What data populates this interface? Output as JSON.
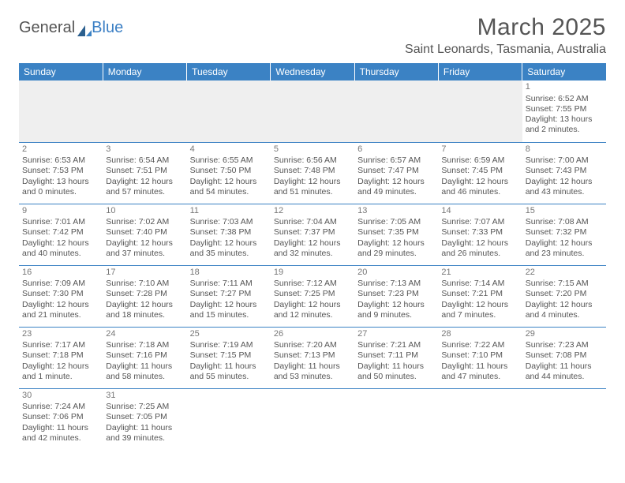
{
  "brand": {
    "part1": "General",
    "part2": "Blue"
  },
  "title": "March 2025",
  "location": "Saint Leonards, Tasmania, Australia",
  "colors": {
    "header_bg": "#3b82c4",
    "header_fg": "#ffffff",
    "text": "#555555",
    "blank_bg": "#efefef"
  },
  "weekdays": [
    "Sunday",
    "Monday",
    "Tuesday",
    "Wednesday",
    "Thursday",
    "Friday",
    "Saturday"
  ],
  "cells": [
    [
      null,
      null,
      null,
      null,
      null,
      null,
      {
        "n": "1",
        "sr": "Sunrise: 6:52 AM",
        "ss": "Sunset: 7:55 PM",
        "d1": "Daylight: 13 hours",
        "d2": "and 2 minutes."
      }
    ],
    [
      {
        "n": "2",
        "sr": "Sunrise: 6:53 AM",
        "ss": "Sunset: 7:53 PM",
        "d1": "Daylight: 13 hours",
        "d2": "and 0 minutes."
      },
      {
        "n": "3",
        "sr": "Sunrise: 6:54 AM",
        "ss": "Sunset: 7:51 PM",
        "d1": "Daylight: 12 hours",
        "d2": "and 57 minutes."
      },
      {
        "n": "4",
        "sr": "Sunrise: 6:55 AM",
        "ss": "Sunset: 7:50 PM",
        "d1": "Daylight: 12 hours",
        "d2": "and 54 minutes."
      },
      {
        "n": "5",
        "sr": "Sunrise: 6:56 AM",
        "ss": "Sunset: 7:48 PM",
        "d1": "Daylight: 12 hours",
        "d2": "and 51 minutes."
      },
      {
        "n": "6",
        "sr": "Sunrise: 6:57 AM",
        "ss": "Sunset: 7:47 PM",
        "d1": "Daylight: 12 hours",
        "d2": "and 49 minutes."
      },
      {
        "n": "7",
        "sr": "Sunrise: 6:59 AM",
        "ss": "Sunset: 7:45 PM",
        "d1": "Daylight: 12 hours",
        "d2": "and 46 minutes."
      },
      {
        "n": "8",
        "sr": "Sunrise: 7:00 AM",
        "ss": "Sunset: 7:43 PM",
        "d1": "Daylight: 12 hours",
        "d2": "and 43 minutes."
      }
    ],
    [
      {
        "n": "9",
        "sr": "Sunrise: 7:01 AM",
        "ss": "Sunset: 7:42 PM",
        "d1": "Daylight: 12 hours",
        "d2": "and 40 minutes."
      },
      {
        "n": "10",
        "sr": "Sunrise: 7:02 AM",
        "ss": "Sunset: 7:40 PM",
        "d1": "Daylight: 12 hours",
        "d2": "and 37 minutes."
      },
      {
        "n": "11",
        "sr": "Sunrise: 7:03 AM",
        "ss": "Sunset: 7:38 PM",
        "d1": "Daylight: 12 hours",
        "d2": "and 35 minutes."
      },
      {
        "n": "12",
        "sr": "Sunrise: 7:04 AM",
        "ss": "Sunset: 7:37 PM",
        "d1": "Daylight: 12 hours",
        "d2": "and 32 minutes."
      },
      {
        "n": "13",
        "sr": "Sunrise: 7:05 AM",
        "ss": "Sunset: 7:35 PM",
        "d1": "Daylight: 12 hours",
        "d2": "and 29 minutes."
      },
      {
        "n": "14",
        "sr": "Sunrise: 7:07 AM",
        "ss": "Sunset: 7:33 PM",
        "d1": "Daylight: 12 hours",
        "d2": "and 26 minutes."
      },
      {
        "n": "15",
        "sr": "Sunrise: 7:08 AM",
        "ss": "Sunset: 7:32 PM",
        "d1": "Daylight: 12 hours",
        "d2": "and 23 minutes."
      }
    ],
    [
      {
        "n": "16",
        "sr": "Sunrise: 7:09 AM",
        "ss": "Sunset: 7:30 PM",
        "d1": "Daylight: 12 hours",
        "d2": "and 21 minutes."
      },
      {
        "n": "17",
        "sr": "Sunrise: 7:10 AM",
        "ss": "Sunset: 7:28 PM",
        "d1": "Daylight: 12 hours",
        "d2": "and 18 minutes."
      },
      {
        "n": "18",
        "sr": "Sunrise: 7:11 AM",
        "ss": "Sunset: 7:27 PM",
        "d1": "Daylight: 12 hours",
        "d2": "and 15 minutes."
      },
      {
        "n": "19",
        "sr": "Sunrise: 7:12 AM",
        "ss": "Sunset: 7:25 PM",
        "d1": "Daylight: 12 hours",
        "d2": "and 12 minutes."
      },
      {
        "n": "20",
        "sr": "Sunrise: 7:13 AM",
        "ss": "Sunset: 7:23 PM",
        "d1": "Daylight: 12 hours",
        "d2": "and 9 minutes."
      },
      {
        "n": "21",
        "sr": "Sunrise: 7:14 AM",
        "ss": "Sunset: 7:21 PM",
        "d1": "Daylight: 12 hours",
        "d2": "and 7 minutes."
      },
      {
        "n": "22",
        "sr": "Sunrise: 7:15 AM",
        "ss": "Sunset: 7:20 PM",
        "d1": "Daylight: 12 hours",
        "d2": "and 4 minutes."
      }
    ],
    [
      {
        "n": "23",
        "sr": "Sunrise: 7:17 AM",
        "ss": "Sunset: 7:18 PM",
        "d1": "Daylight: 12 hours",
        "d2": "and 1 minute."
      },
      {
        "n": "24",
        "sr": "Sunrise: 7:18 AM",
        "ss": "Sunset: 7:16 PM",
        "d1": "Daylight: 11 hours",
        "d2": "and 58 minutes."
      },
      {
        "n": "25",
        "sr": "Sunrise: 7:19 AM",
        "ss": "Sunset: 7:15 PM",
        "d1": "Daylight: 11 hours",
        "d2": "and 55 minutes."
      },
      {
        "n": "26",
        "sr": "Sunrise: 7:20 AM",
        "ss": "Sunset: 7:13 PM",
        "d1": "Daylight: 11 hours",
        "d2": "and 53 minutes."
      },
      {
        "n": "27",
        "sr": "Sunrise: 7:21 AM",
        "ss": "Sunset: 7:11 PM",
        "d1": "Daylight: 11 hours",
        "d2": "and 50 minutes."
      },
      {
        "n": "28",
        "sr": "Sunrise: 7:22 AM",
        "ss": "Sunset: 7:10 PM",
        "d1": "Daylight: 11 hours",
        "d2": "and 47 minutes."
      },
      {
        "n": "29",
        "sr": "Sunrise: 7:23 AM",
        "ss": "Sunset: 7:08 PM",
        "d1": "Daylight: 11 hours",
        "d2": "and 44 minutes."
      }
    ],
    [
      {
        "n": "30",
        "sr": "Sunrise: 7:24 AM",
        "ss": "Sunset: 7:06 PM",
        "d1": "Daylight: 11 hours",
        "d2": "and 42 minutes."
      },
      {
        "n": "31",
        "sr": "Sunrise: 7:25 AM",
        "ss": "Sunset: 7:05 PM",
        "d1": "Daylight: 11 hours",
        "d2": "and 39 minutes."
      },
      null,
      null,
      null,
      null,
      null
    ]
  ]
}
